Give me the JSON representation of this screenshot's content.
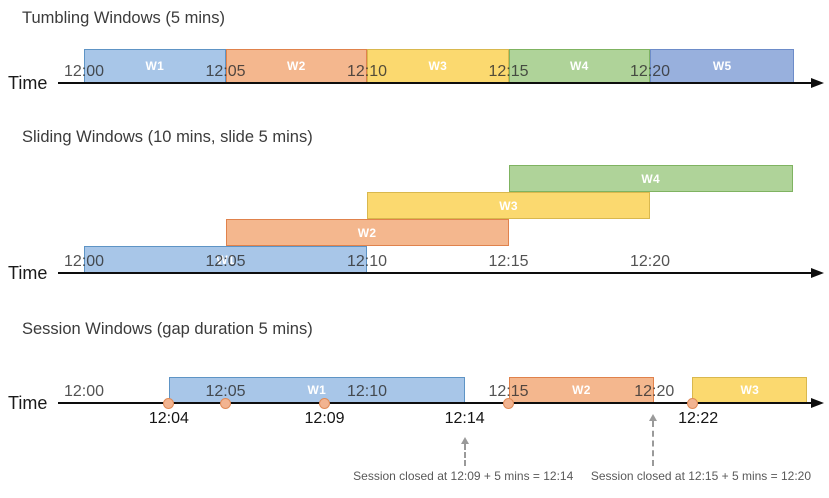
{
  "diagram": {
    "palette": {
      "blue": {
        "fill": "#A8C6E8",
        "border": "#5E94C5"
      },
      "orange": {
        "fill": "#F4B78E",
        "border": "#E0824C"
      },
      "yellow": {
        "fill": "#FBD96F",
        "border": "#D9B84E"
      },
      "green": {
        "fill": "#AFD399",
        "border": "#7FB361"
      },
      "periwinkle": {
        "fill": "#98B0DD",
        "border": "#6D8CC9"
      },
      "event_dot_fill": "#F2B491",
      "event_dot_border": "#E08B57",
      "axis_color": "#0d0d0d",
      "annotation_color": "#595959"
    },
    "sections": [
      {
        "title": "Tumbling Windows (5 mins)",
        "time_label": "Time",
        "ticks": [
          {
            "label": "12:00",
            "t": 0
          },
          {
            "label": "12:05",
            "t": 5
          },
          {
            "label": "12:10",
            "t": 10
          },
          {
            "label": "12:15",
            "t": 15
          },
          {
            "label": "12:20",
            "t": 20
          }
        ],
        "windows": [
          {
            "label": "W1",
            "start": 0,
            "end": 5,
            "color": "blue",
            "row": 0
          },
          {
            "label": "W2",
            "start": 5,
            "end": 10,
            "color": "orange",
            "row": 0
          },
          {
            "label": "W3",
            "start": 10,
            "end": 15,
            "color": "yellow",
            "row": 0
          },
          {
            "label": "W4",
            "start": 15,
            "end": 20,
            "color": "green",
            "row": 0
          },
          {
            "label": "W5",
            "start": 20,
            "end": 25.1,
            "color": "periwinkle",
            "row": 0
          }
        ]
      },
      {
        "title": "Sliding Windows (10 mins, slide 5 mins)",
        "time_label": "Time",
        "ticks": [
          {
            "label": "12:00",
            "t": 0
          },
          {
            "label": "12:05",
            "t": 5
          },
          {
            "label": "12:10",
            "t": 10
          },
          {
            "label": "12:15",
            "t": 15
          },
          {
            "label": "12:20",
            "t": 20
          }
        ],
        "windows": [
          {
            "label": "W1",
            "start": 0,
            "end": 10,
            "color": "blue",
            "row": 0
          },
          {
            "label": "W2",
            "start": 5,
            "end": 15,
            "color": "orange",
            "row": 1
          },
          {
            "label": "W3",
            "start": 10,
            "end": 20,
            "color": "yellow",
            "row": 2
          },
          {
            "label": "W4",
            "start": 15,
            "end": 25.05,
            "color": "green",
            "row": 3
          }
        ]
      },
      {
        "title": "Session Windows (gap duration 5 mins)",
        "time_label": "Time",
        "ticks": [
          {
            "label": "12:00",
            "t": 0
          },
          {
            "label": "12:05",
            "t": 5
          },
          {
            "label": "12:10",
            "t": 10
          },
          {
            "label": "12:15",
            "t": 15
          },
          {
            "label": "12:20",
            "t": 20.15
          }
        ],
        "windows": [
          {
            "label": "W1",
            "start": 3,
            "end": 13.45,
            "color": "blue",
            "row": 0
          },
          {
            "label": "W2",
            "start": 15,
            "end": 20.15,
            "color": "orange",
            "row": 0
          },
          {
            "label": "W3",
            "start": 21.5,
            "end": 25.55,
            "color": "yellow",
            "row": 0
          }
        ],
        "event_dots": [
          {
            "t": 3
          },
          {
            "t": 5
          },
          {
            "t": 8.5
          },
          {
            "t": 15
          },
          {
            "t": 21.5
          }
        ],
        "event_labels": [
          {
            "label": "12:04",
            "t": 3
          },
          {
            "label": "12:09",
            "t": 8.5
          },
          {
            "label": "12:14",
            "t": 13.45
          },
          {
            "label": "12:22",
            "t": 21.7
          }
        ],
        "annotations": [
          {
            "text": "Session closed at 12:09 + 5 mins = 12:14",
            "center_t": 13.4,
            "arrow_t": 13.45,
            "arrow_style": "short"
          },
          {
            "text": "Session closed at 12:15 + 5 mins = 12:20",
            "center_t": 21.8,
            "arrow_t": 20.1,
            "arrow_style": "long"
          }
        ]
      }
    ]
  }
}
